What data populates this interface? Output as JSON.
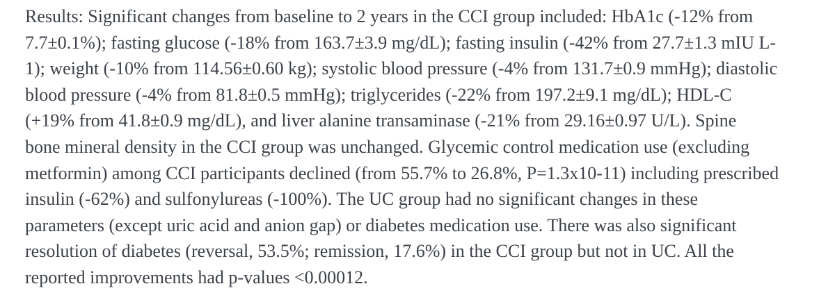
{
  "page": {
    "background_color": "#ffffff",
    "text_color": "#3d424a"
  },
  "abstract": {
    "section_label": "Results:",
    "lines": [
      "Results: Significant changes from baseline to 2 years in the CCI group included: HbA1c (-12% from",
      "7.7±0.1%); fasting glucose (-18% from 163.7±3.9 mg/dL); fasting insulin (-42% from 27.7±1.3 mIU L-",
      "1); weight (-10% from 114.56±0.60 kg); systolic blood pressure (-4% from 131.7±0.9 mmHg); diastolic",
      "blood pressure (-4% from 81.8±0.5 mmHg); triglycerides (-22% from 197.2±9.1 mg/dL); HDL-C",
      "(+19% from 41.8±0.9 mg/dL), and liver alanine transaminase (-21% from 29.16±0.97 U/L). Spine",
      "bone mineral density in the CCI group was unchanged. Glycemic control medication use (excluding",
      "metformin) among CCI participants declined (from 55.7% to 26.8%, P=1.3x10-11) including prescribed",
      "insulin (-62%) and sulfonylureas (-100%). The UC group had no significant changes in these",
      "parameters (except uric acid and anion gap) or diabetes medication use. There was also significant",
      "resolution of diabetes (reversal, 53.5%; remission, 17.6%) in the CCI group but not in UC. All the",
      "reported improvements had p-values <0.00012."
    ]
  }
}
